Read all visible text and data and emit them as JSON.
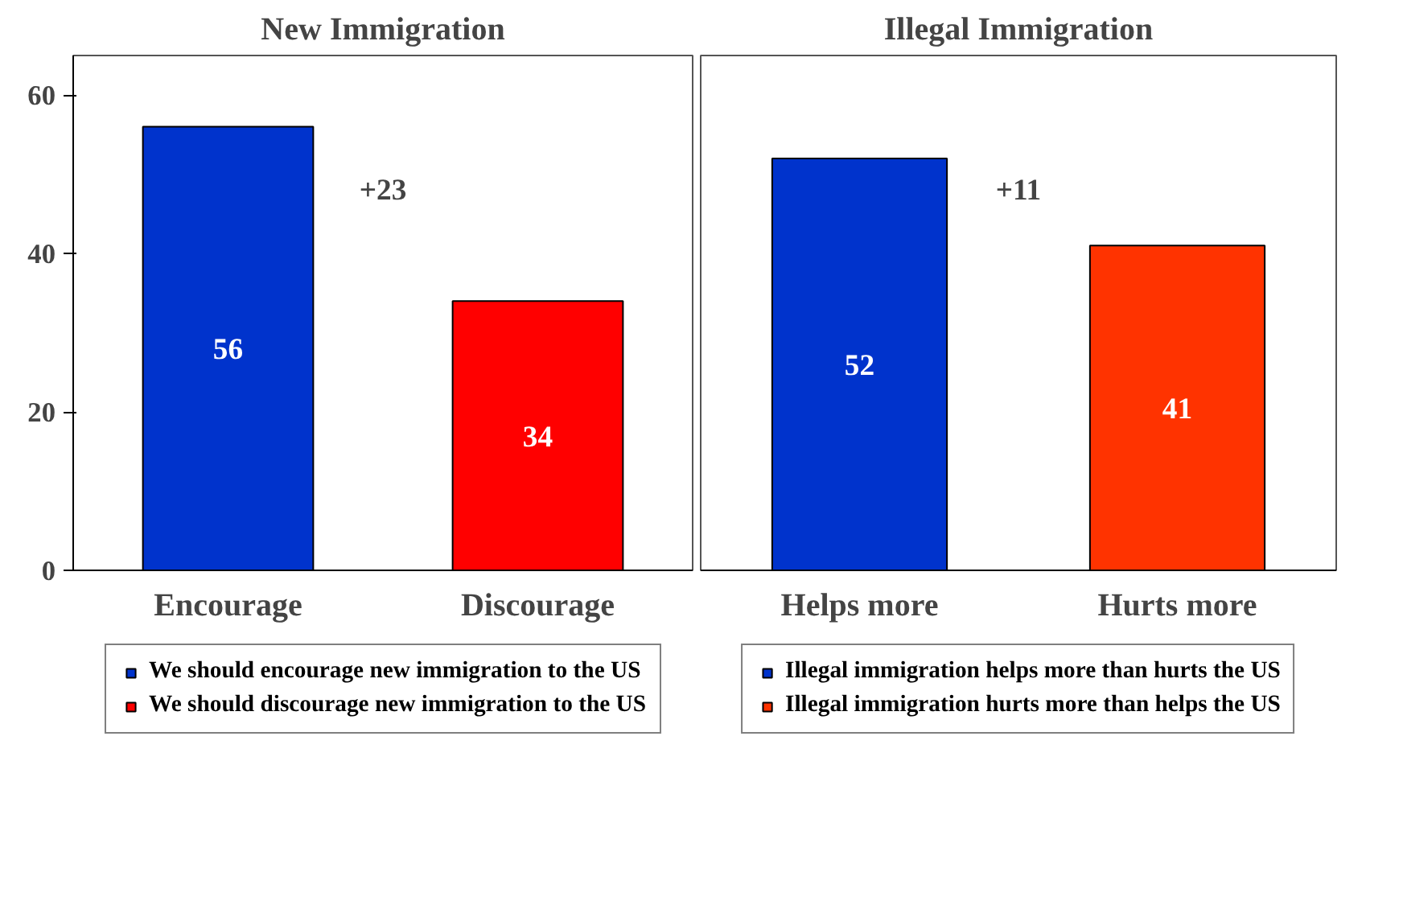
{
  "chart_data": [
    {
      "type": "bar",
      "title": "New Immigration",
      "categories": [
        "Encourage",
        "Discourage"
      ],
      "series": [
        {
          "name": "We should encourage new immigration to the US",
          "color": "#0033cc",
          "values": [
            56,
            null
          ]
        },
        {
          "name": "We should discourage new immigration to the US",
          "color": "#ff0000",
          "values": [
            null,
            34
          ]
        }
      ],
      "ylim": [
        0,
        65
      ],
      "yticks": [
        0,
        20,
        40,
        60
      ],
      "data_labels": true,
      "annotations": [
        "+23"
      ],
      "grid": false,
      "legend": "bottom"
    },
    {
      "type": "bar",
      "title": "Illegal Immigration",
      "categories": [
        "Helps more",
        "Hurts more"
      ],
      "series": [
        {
          "name": "Illegal immigration helps more than hurts the US",
          "color": "#0033cc",
          "values": [
            52,
            null
          ]
        },
        {
          "name": "Illegal immigration hurts more than helps the US",
          "color": "#ff3300",
          "values": [
            null,
            41
          ]
        }
      ],
      "ylim": [
        0,
        65
      ],
      "yticks": [
        0,
        20,
        40,
        60
      ],
      "tick_labels": "x",
      "data_labels": true,
      "annotations": [
        "+11"
      ],
      "grid": false,
      "legend": "bottom"
    }
  ]
}
